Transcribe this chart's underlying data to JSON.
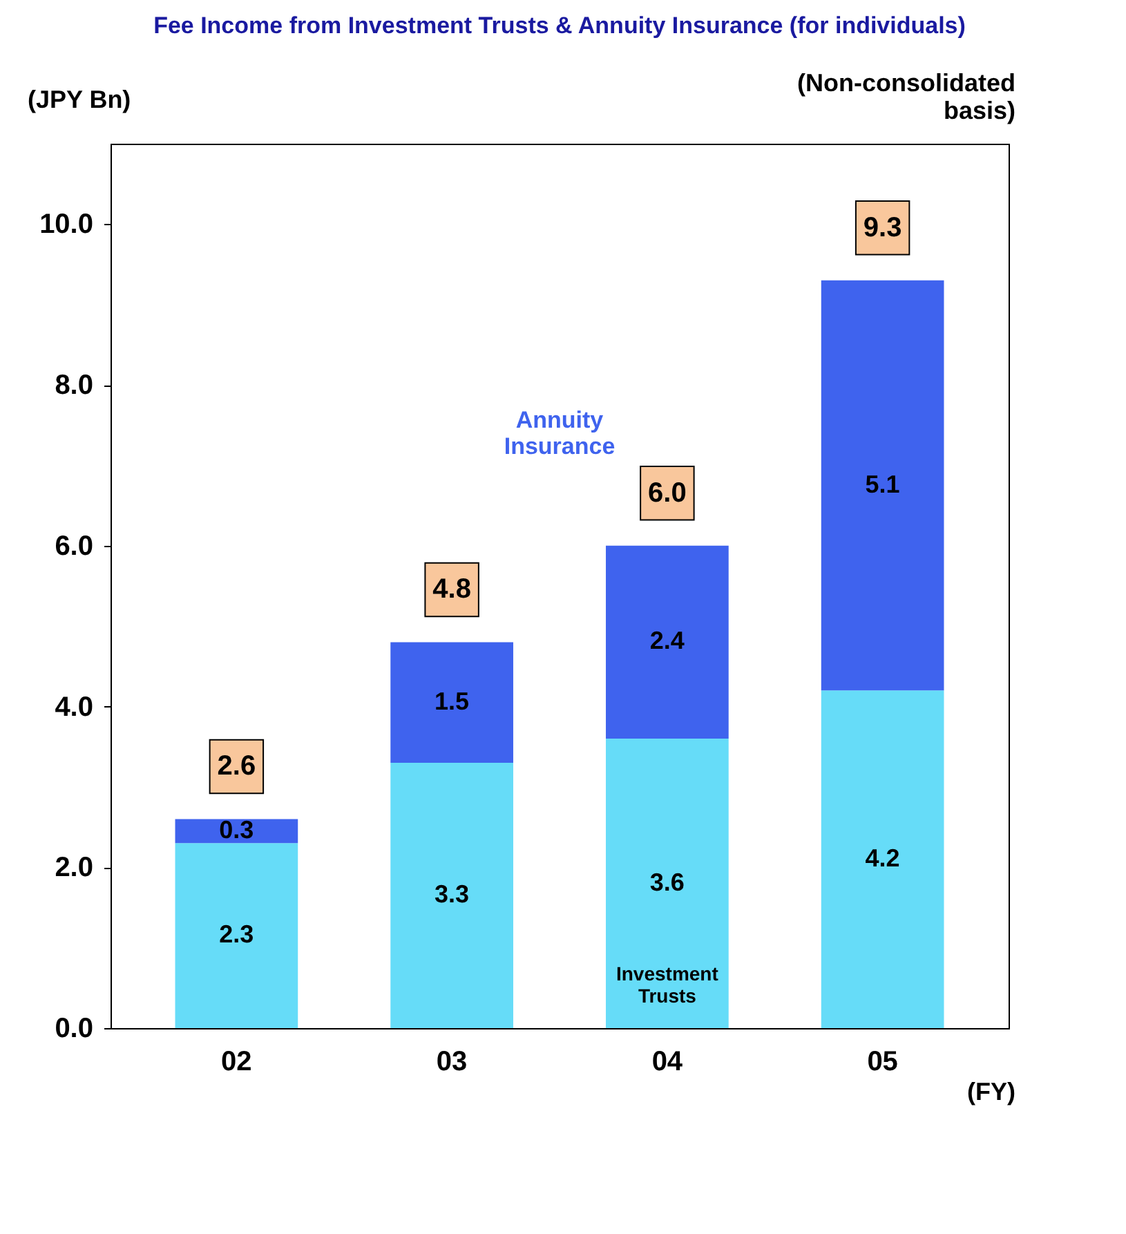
{
  "chart_data": {
    "type": "bar",
    "title": "Fee Income from Investment Trusts & Annuity Insurance (for individuals)",
    "categories": [
      "02",
      "03",
      "04",
      "05"
    ],
    "stacked": true,
    "series": [
      {
        "name": "Investment Trusts",
        "color": "#66dcf8",
        "values": [
          2.3,
          3.3,
          3.6,
          4.2
        ]
      },
      {
        "name": "Annuity Insurance",
        "color": "#3f63ee",
        "values": [
          0.3,
          1.5,
          2.4,
          5.1
        ]
      }
    ],
    "data_labels": true,
    "totals": [
      "2.6",
      "4.8",
      "6.0",
      "9.3"
    ],
    "ylim": [
      0,
      11
    ],
    "yticks": [
      {
        "value": 0,
        "label": "0.0"
      },
      {
        "value": 2,
        "label": "2.0"
      },
      {
        "value": 4,
        "label": "4.0"
      },
      {
        "value": 6,
        "label": "6.0"
      },
      {
        "value": 8,
        "label": "8.0"
      },
      {
        "value": 10,
        "label": "10.0"
      }
    ],
    "grid": false,
    "legend": false,
    "annotations": [
      "(JPY Bn)",
      "(Non-consolidated basis)",
      "(FY)"
    ]
  }
}
